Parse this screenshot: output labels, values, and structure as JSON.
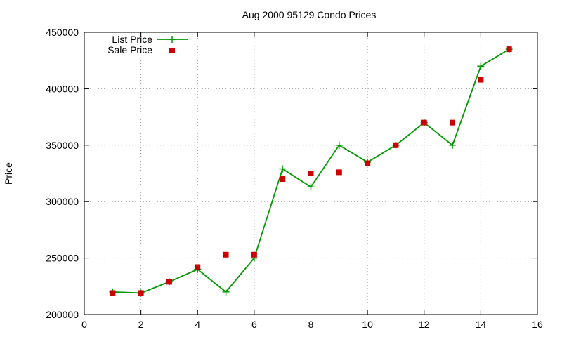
{
  "chart_data": {
    "type": "line",
    "title": "Aug 2000 95129 Condo Prices",
    "xlabel": "",
    "ylabel": "Price",
    "xlim": [
      0,
      16
    ],
    "ylim": [
      200000,
      450000
    ],
    "x_ticks": [
      0,
      2,
      4,
      6,
      8,
      10,
      12,
      14,
      16
    ],
    "y_ticks": [
      200000,
      250000,
      300000,
      350000,
      400000,
      450000
    ],
    "grid": true,
    "legend_position": "top-left",
    "series": [
      {
        "name": "List Price",
        "style": "line-points",
        "color": "#009900",
        "points": [
          [
            1,
            220000
          ],
          [
            2,
            219000
          ],
          [
            3,
            229000
          ],
          [
            4,
            240000
          ],
          [
            5,
            220000
          ],
          [
            6,
            250000
          ],
          [
            7,
            329000
          ],
          [
            8,
            313000
          ],
          [
            9,
            350000
          ],
          [
            10,
            335000
          ],
          [
            11,
            350000
          ],
          [
            12,
            370000
          ],
          [
            13,
            350000
          ],
          [
            14,
            420000
          ],
          [
            15,
            435000
          ]
        ]
      },
      {
        "name": "Sale Price",
        "style": "points",
        "color": "#cc0000",
        "points": [
          [
            1,
            219000
          ],
          [
            2,
            219000
          ],
          [
            3,
            229000
          ],
          [
            4,
            242000
          ],
          [
            5,
            253000
          ],
          [
            6,
            253000
          ],
          [
            7,
            320000
          ],
          [
            8,
            325000
          ],
          [
            9,
            326000
          ],
          [
            10,
            334000
          ],
          [
            11,
            350000
          ],
          [
            12,
            370000
          ],
          [
            13,
            370000
          ],
          [
            14,
            408000
          ],
          [
            15,
            435000
          ]
        ]
      }
    ]
  }
}
